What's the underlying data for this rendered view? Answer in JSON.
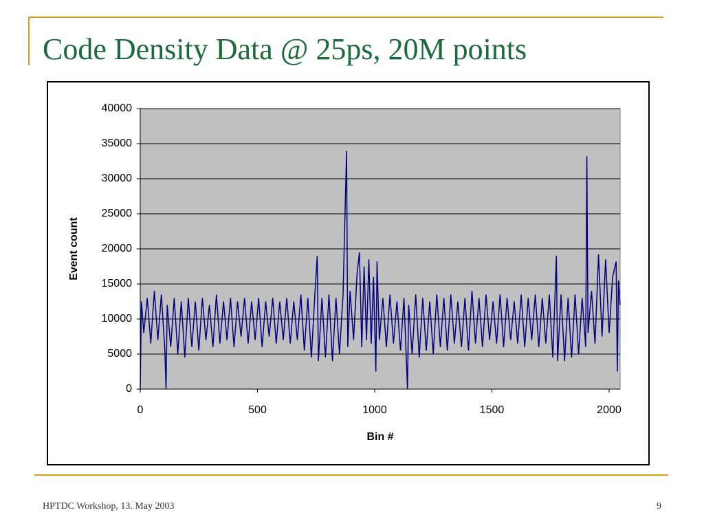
{
  "slide": {
    "title": "Code Density Data @ 25ps, 20M points",
    "footer": "HPTDC Workshop, 13. May 2003",
    "page_number": "9"
  },
  "chart_data": {
    "type": "line",
    "x_label": "Bin #",
    "y_label": "Event count",
    "color": "#000080",
    "plot_background": "#c0c0c0",
    "grid": true,
    "xlim": [
      0,
      2047
    ],
    "ylim": [
      0,
      40000
    ],
    "xticks": [
      0,
      500,
      1000,
      1500,
      2000
    ],
    "yticks": [
      0,
      5000,
      10000,
      15000,
      20000,
      25000,
      30000,
      35000,
      40000
    ],
    "x": [
      0,
      5,
      15,
      30,
      45,
      60,
      75,
      90,
      105,
      110,
      115,
      130,
      145,
      160,
      175,
      190,
      205,
      220,
      235,
      250,
      265,
      280,
      295,
      310,
      325,
      340,
      355,
      370,
      385,
      400,
      415,
      430,
      445,
      460,
      475,
      490,
      505,
      520,
      535,
      550,
      565,
      580,
      595,
      610,
      625,
      640,
      655,
      670,
      685,
      700,
      715,
      730,
      745,
      755,
      760,
      775,
      790,
      805,
      820,
      835,
      850,
      865,
      880,
      885,
      895,
      910,
      925,
      935,
      945,
      955,
      965,
      975,
      985,
      995,
      1005,
      1010,
      1020,
      1035,
      1050,
      1065,
      1080,
      1095,
      1110,
      1125,
      1140,
      1145,
      1160,
      1175,
      1190,
      1205,
      1220,
      1235,
      1250,
      1265,
      1280,
      1295,
      1310,
      1325,
      1340,
      1355,
      1370,
      1385,
      1400,
      1415,
      1430,
      1445,
      1460,
      1475,
      1490,
      1505,
      1520,
      1535,
      1550,
      1565,
      1580,
      1595,
      1610,
      1625,
      1640,
      1655,
      1670,
      1685,
      1700,
      1715,
      1730,
      1745,
      1760,
      1775,
      1780,
      1795,
      1810,
      1825,
      1840,
      1855,
      1870,
      1885,
      1900,
      1905,
      1910,
      1925,
      1940,
      1955,
      1970,
      1985,
      2000,
      2015,
      2030,
      2035,
      2040,
      2047
    ],
    "values": [
      0,
      12500,
      8000,
      13000,
      6500,
      14000,
      7000,
      13500,
      5500,
      0,
      12000,
      6000,
      13000,
      5000,
      12500,
      4500,
      13000,
      6000,
      12500,
      5500,
      13000,
      7000,
      12000,
      6000,
      13500,
      6500,
      12500,
      7000,
      13000,
      6000,
      12500,
      7500,
      13000,
      6500,
      12500,
      7000,
      13000,
      6000,
      12500,
      7500,
      13000,
      6500,
      12500,
      7000,
      13000,
      6500,
      12500,
      7000,
      13500,
      5500,
      13000,
      4500,
      13500,
      19000,
      4000,
      13000,
      4500,
      13500,
      4000,
      13000,
      5000,
      13500,
      34000,
      6000,
      14000,
      7000,
      16500,
      19500,
      6000,
      17500,
      7000,
      18500,
      6500,
      16000,
      2500,
      18200,
      7000,
      13000,
      6000,
      13500,
      6500,
      12500,
      5500,
      13000,
      0,
      12000,
      5000,
      13500,
      4500,
      13000,
      5500,
      12500,
      5000,
      13500,
      6000,
      13000,
      5500,
      13500,
      6500,
      12500,
      6000,
      13000,
      5500,
      14000,
      6500,
      13000,
      6000,
      13500,
      7000,
      12500,
      6500,
      13500,
      6000,
      13000,
      7000,
      12500,
      6500,
      13500,
      6000,
      13000,
      7000,
      13500,
      6000,
      13000,
      6500,
      13500,
      4500,
      19000,
      4000,
      13500,
      4000,
      13000,
      4500,
      13500,
      5000,
      13000,
      6000,
      33200,
      8000,
      14000,
      6500,
      19200,
      7500,
      18500,
      8000,
      16000,
      18200,
      2500,
      15500,
      12000
    ]
  }
}
